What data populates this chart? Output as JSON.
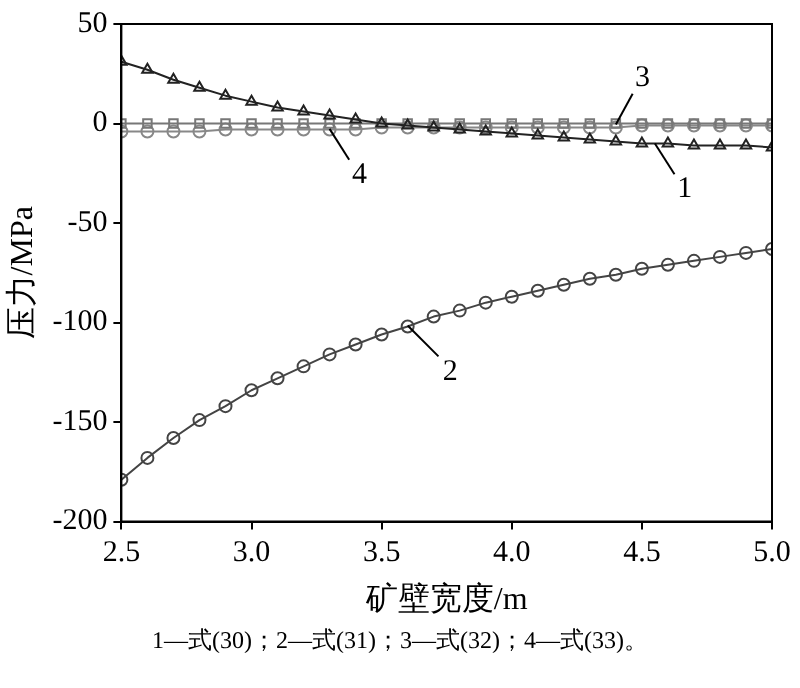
{
  "chart_data": {
    "type": "line",
    "xlabel": "矿壁宽度/m",
    "ylabel": "压力/MPa",
    "x": [
      2.5,
      2.6,
      2.7,
      2.8,
      2.9,
      3.0,
      3.1,
      3.2,
      3.3,
      3.4,
      3.5,
      3.6,
      3.7,
      3.8,
      3.9,
      4.0,
      4.1,
      4.2,
      4.3,
      4.4,
      4.5,
      4.6,
      4.7,
      4.8,
      4.9,
      5.0
    ],
    "series": [
      {
        "color": "#222222",
        "marker": "triangle",
        "values": [
          31,
          27,
          22,
          18,
          14,
          11,
          8,
          6,
          4,
          2,
          0,
          -1,
          -2,
          -3,
          -4,
          -5,
          -6,
          -7,
          -8,
          -9,
          -10,
          -10,
          -11,
          -11,
          -11,
          -12
        ]
      },
      {
        "color": "#444444",
        "marker": "circle",
        "values": [
          -179,
          -168,
          -158,
          -149,
          -142,
          -134,
          -128,
          -122,
          -116,
          -111,
          -106,
          -102,
          -97,
          -94,
          -90,
          -87,
          -84,
          -81,
          -78,
          -76,
          -73,
          -71,
          -69,
          -67,
          -65,
          -63
        ]
      },
      {
        "color": "#777777",
        "marker": "square",
        "values": [
          0,
          0,
          0,
          0,
          0,
          0,
          0,
          0,
          0,
          0,
          0,
          0,
          0,
          0,
          0,
          0,
          0,
          0,
          0,
          0,
          0,
          0,
          0,
          0,
          0,
          0
        ]
      },
      {
        "color": "#888888",
        "marker": "circle",
        "values": [
          -4,
          -4,
          -4,
          -4,
          -3,
          -3,
          -3,
          -3,
          -3,
          -3,
          -2,
          -2,
          -2,
          -2,
          -2,
          -2,
          -2,
          -2,
          -2,
          -2,
          -1,
          -1,
          -1,
          -1,
          -1,
          -1
        ]
      }
    ],
    "xlim": [
      2.5,
      5.0
    ],
    "xticks": [
      2.5,
      {
        "value": 3,
        "label": "3.0"
      },
      3.5,
      {
        "value": 4,
        "label": "4.0"
      },
      4.5,
      {
        "value": 5,
        "label": "5.0"
      }
    ],
    "ylim": [
      -200,
      50
    ],
    "yticks": [
      -200,
      -150,
      -100,
      -50,
      0,
      50
    ],
    "grid": false,
    "legend": false,
    "line_style": "solid",
    "annotations": [
      {
        "text": "1",
        "x": 4.55,
        "y": -10
      },
      {
        "text": "2",
        "x": 3.6,
        "y": -101.5
      },
      {
        "text": "3",
        "x": 4.4,
        "y": -0.5
      },
      {
        "text": "4",
        "x": 3.3,
        "y": -2.7
      },
      "1—式(30)；2—式(31)；3—式(32)；4—式(33)。"
    ]
  }
}
